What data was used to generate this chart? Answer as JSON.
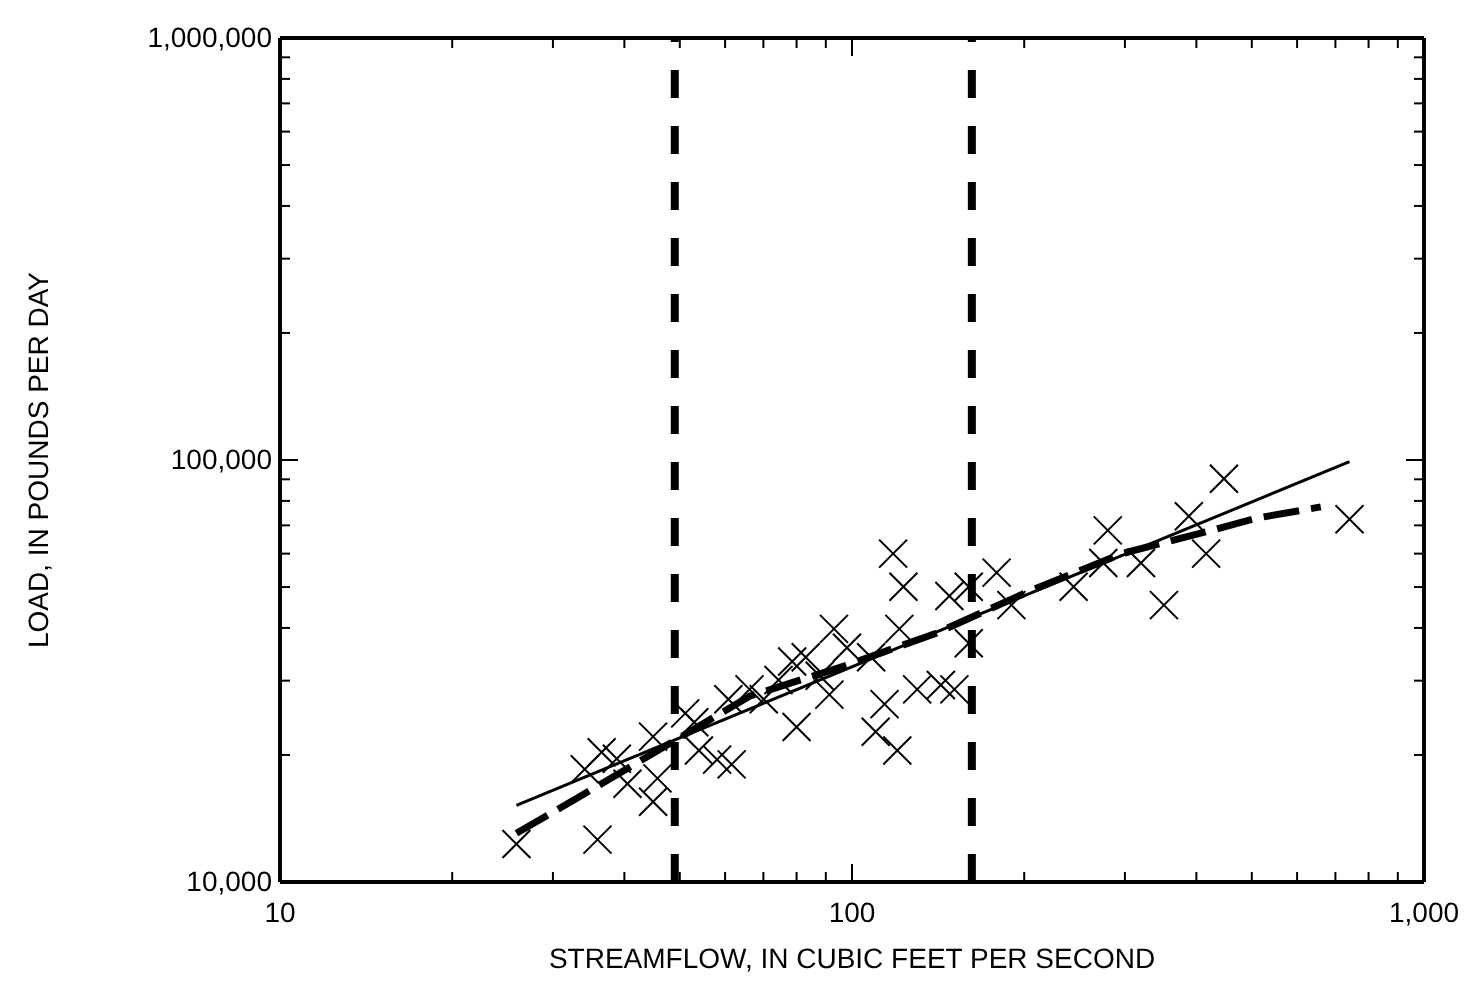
{
  "chart_data": {
    "type": "scatter",
    "xlabel": "STREAMFLOW, IN CUBIC FEET PER SECOND",
    "ylabel": "LOAD, IN POUNDS PER DAY",
    "log": "xy",
    "grid": false,
    "xlim": [
      10,
      1000
    ],
    "ylim": [
      10000,
      1000000
    ],
    "xticks": [
      {
        "value": 10,
        "label": "10"
      },
      {
        "value": 20,
        "label": null
      },
      {
        "value": 30,
        "label": null
      },
      {
        "value": 40,
        "label": null
      },
      {
        "value": 50,
        "label": null
      },
      {
        "value": 60,
        "label": null
      },
      {
        "value": 70,
        "label": null
      },
      {
        "value": 80,
        "label": null
      },
      {
        "value": 90,
        "label": null
      },
      {
        "value": 100,
        "label": "100"
      },
      {
        "value": 200,
        "label": null
      },
      {
        "value": 300,
        "label": null
      },
      {
        "value": 400,
        "label": null
      },
      {
        "value": 500,
        "label": null
      },
      {
        "value": 600,
        "label": null
      },
      {
        "value": 700,
        "label": null
      },
      {
        "value": 800,
        "label": null
      },
      {
        "value": 900,
        "label": null
      },
      {
        "value": 1000,
        "label": "1,000"
      }
    ],
    "yticks": [
      {
        "value": 10000,
        "label": "10,000"
      },
      {
        "value": 20000,
        "label": null
      },
      {
        "value": 30000,
        "label": null
      },
      {
        "value": 40000,
        "label": null
      },
      {
        "value": 50000,
        "label": null
      },
      {
        "value": 60000,
        "label": null
      },
      {
        "value": 70000,
        "label": null
      },
      {
        "value": 80000,
        "label": null
      },
      {
        "value": 90000,
        "label": null
      },
      {
        "value": 100000,
        "label": "100,000"
      },
      {
        "value": 200000,
        "label": null
      },
      {
        "value": 300000,
        "label": null
      },
      {
        "value": 400000,
        "label": null
      },
      {
        "value": 500000,
        "label": null
      },
      {
        "value": 600000,
        "label": null
      },
      {
        "value": 700000,
        "label": null
      },
      {
        "value": 800000,
        "label": null
      },
      {
        "value": 900000,
        "label": null
      },
      {
        "value": 1000000,
        "label": "1,000,000"
      }
    ],
    "ref_lines": [
      {
        "axis": "x",
        "value": 49,
        "color": "#000000",
        "line_style": "dashed"
      },
      {
        "axis": "x",
        "value": 162,
        "color": "#000000",
        "line_style": "dashed"
      }
    ],
    "series": [
      {
        "marker": "cross",
        "color": "#000000",
        "x": [
          25.9,
          35.9,
          34.1,
          36.5,
          38.8,
          40.5,
          44.9,
          45.7,
          44.9,
          51.1,
          53,
          54,
          58.1,
          60.8,
          61.6,
          66.2,
          70.1,
          74.4,
          80,
          78.6,
          83,
          87.8,
          91.3,
          93,
          98,
          108,
          110,
          114,
          118,
          120,
          123,
          121,
          130,
          143,
          148,
          151,
          160,
          160,
          179,
          190,
          244,
          275,
          280,
          320,
          351,
          388,
          416,
          447,
          741
        ],
        "values": [
          12300,
          12600,
          18500,
          20300,
          19600,
          17100,
          15500,
          17600,
          22100,
          25100,
          23900,
          20500,
          19500,
          27100,
          19000,
          28600,
          27100,
          30100,
          23300,
          33300,
          34100,
          30800,
          27800,
          39800,
          35900,
          34100,
          22700,
          26400,
          60000,
          20500,
          50100,
          39800,
          28600,
          29300,
          47600,
          28600,
          50100,
          36800,
          54100,
          45300,
          50100,
          57000,
          68100,
          57000,
          45300,
          73600,
          60000,
          90300,
          72400
        ]
      },
      {
        "type": "line",
        "marker": "none",
        "line_style": "solid",
        "color": "#000000",
        "x": [
          25.9,
          741
        ],
        "values": [
          15200,
          99100
        ]
      },
      {
        "type": "line",
        "marker": "none",
        "line_style": "dashed",
        "color": "#000000",
        "x": [
          25.9,
          33.2,
          45.7,
          66.2,
          96.5,
          140,
          204,
          296,
          425,
          509,
          660
        ],
        "values": [
          13050,
          15850,
          20470,
          27560,
          32430,
          38810,
          48860,
          59970,
          68130,
          72780,
          77420
        ]
      }
    ]
  }
}
